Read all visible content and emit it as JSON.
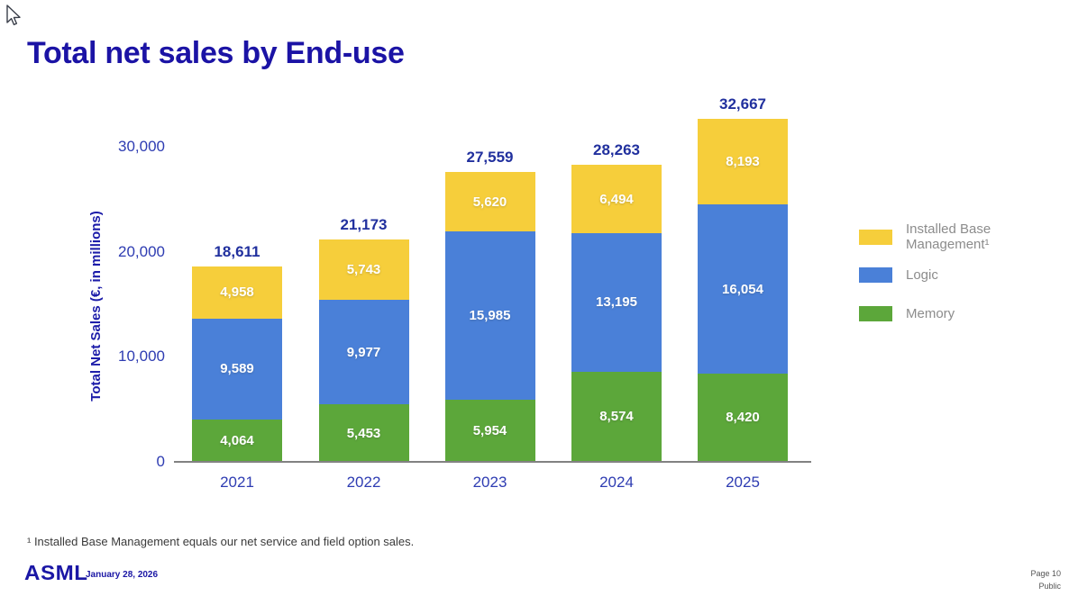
{
  "page": {
    "title": "Total net sales by End-use",
    "footnote": "¹ Installed Base Management equals our net service and field option sales.",
    "logo": "ASML",
    "date": "January 28, 2026",
    "page_number": "Page 10",
    "classification": "Public"
  },
  "chart_data": {
    "type": "bar",
    "stacked": true,
    "ylabel": "Total Net Sales (€, in millions)",
    "categories": [
      "2021",
      "2022",
      "2023",
      "2024",
      "2025"
    ],
    "series": [
      {
        "name": "Memory",
        "legend_label": "Memory",
        "color": "#5CA73A",
        "values": [
          4064,
          5453,
          5954,
          8574,
          8420
        ]
      },
      {
        "name": "Logic",
        "legend_label": "Logic",
        "color": "#4A80D8",
        "values": [
          9589,
          9977,
          15985,
          13195,
          16054
        ]
      },
      {
        "name": "Installed Base Management",
        "legend_label": "Installed Base Management¹",
        "color": "#F6CE3B",
        "values": [
          4958,
          5743,
          5620,
          6494,
          8193
        ]
      }
    ],
    "totals": [
      18611,
      21173,
      27559,
      28263,
      32667
    ],
    "yticks": [
      0,
      10000,
      20000,
      30000
    ],
    "ylim": [
      0,
      30000
    ],
    "grid": false,
    "legend_position": "right"
  }
}
